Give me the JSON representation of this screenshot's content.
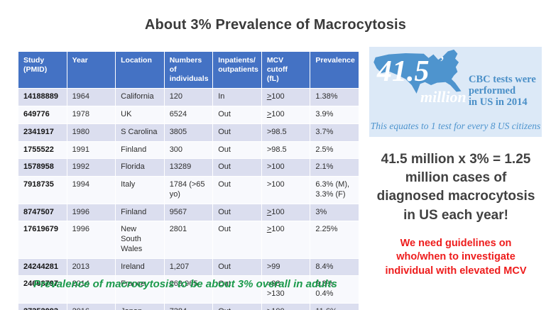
{
  "page": {
    "title": "About 3% Prevalence of Macrocytosis",
    "footnote": "Prevalence of macrocytosis to be about 3% overall in adults"
  },
  "table": {
    "headers": [
      "Study\n(PMID)",
      "Year",
      "Location",
      "Numbers of\nindividuals",
      "Inpatients/\noutpatients",
      "MCV cutoff\n(fL)",
      "Prevalence"
    ],
    "rows": [
      [
        "14188889",
        "1964",
        "California",
        "120",
        "In",
        "≥100",
        "1.38%"
      ],
      [
        "649776",
        "1978",
        "UK",
        "6524",
        "Out",
        "≥100",
        "3.9%"
      ],
      [
        "2341917",
        "1980",
        "S Carolina",
        "3805",
        "Out",
        ">98.5",
        "3.7%"
      ],
      [
        "1755522",
        "1991",
        "Finland",
        "300",
        "Out",
        ">98.5",
        "2.5%"
      ],
      [
        "1578958",
        "1992",
        "Florida",
        "13289",
        "Out",
        ">100",
        "2.1%"
      ],
      [
        "7918735",
        "1994",
        "Italy",
        "1784 (>65 yo)",
        "Out",
        ">100",
        "6.3% (M),\n3.3% (F)"
      ],
      [
        "8747507",
        "1996",
        "Finland",
        "9567",
        "Out",
        "≥100",
        "3%"
      ],
      [
        "17619679",
        "1996",
        "New South Wales",
        "2801",
        "Out",
        "≥100",
        "2.25%"
      ],
      [
        "24244281",
        "2013",
        "Ireland",
        "1,207",
        "Out",
        ">99",
        "8.4%"
      ],
      [
        "24668797",
        "2014",
        "France",
        "269,965",
        "Out",
        ">98\n>130",
        "9.8%\n0.4%"
      ],
      [
        "27352093",
        "2016",
        "Japan",
        "7384",
        "Out",
        "≥100",
        "11.6%"
      ]
    ]
  },
  "infographic": {
    "big_number": "41.5",
    "big_number_unit": "million",
    "headline": "CBC tests were\nperformed\nin US in 2014",
    "caption": "This equates to 1 test for every 8 US citizens"
  },
  "callouts": {
    "calculation": "41.5 million x 3% = 1.25\nmillion cases of\ndiagnosed macrocytosis\nin US each year!",
    "guideline": "We need guidelines on\nwho/when to investigate\nindividual with elevated MCV"
  },
  "colors": {
    "table_header_bg": "#4472C4",
    "band_dark": "#DBDEEF",
    "band_light": "#F8F9FD",
    "panel_bg": "#DCE9F7",
    "map_color": "#4E94CE",
    "info_text": "#4A8FC7",
    "green": "#1B9A4B",
    "red": "#EE1C1C"
  }
}
